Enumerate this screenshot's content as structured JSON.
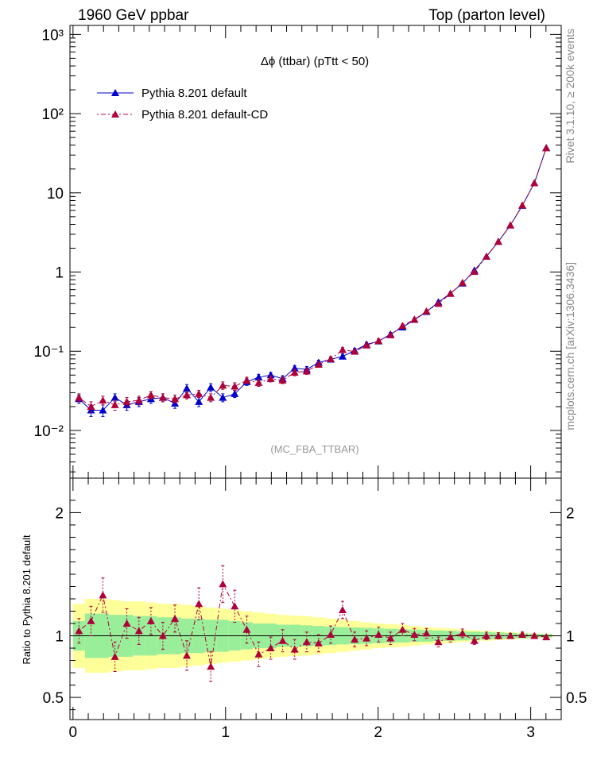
{
  "header": {
    "left": "1960 GeV ppbar",
    "right": "Top (parton level)"
  },
  "side_labels": {
    "rivet": "Rivet 3.1.10, ≥ 200k events",
    "mcplots": "mcplots.cern.ch [arXiv:1306.3436]"
  },
  "chart_data": [
    {
      "type": "line",
      "scale": "log",
      "title": "Δϕ (ttbar) (pTtt < 50)",
      "watermark": "(MC_FBA_TTBAR)",
      "xlim": [
        -0.02,
        3.2
      ],
      "ylim": [
        0.0025,
        1300
      ],
      "y_tick_labels": [
        "10⁻²",
        "10⁻¹",
        "1",
        "10",
        "10²",
        "10³"
      ],
      "x": [
        0.039,
        0.118,
        0.196,
        0.275,
        0.353,
        0.432,
        0.511,
        0.589,
        0.668,
        0.746,
        0.825,
        0.903,
        0.982,
        1.06,
        1.139,
        1.217,
        1.296,
        1.374,
        1.453,
        1.532,
        1.61,
        1.689,
        1.767,
        1.846,
        1.924,
        2.003,
        2.081,
        2.16,
        2.238,
        2.317,
        2.395,
        2.474,
        2.553,
        2.631,
        2.71,
        2.788,
        2.867,
        2.945,
        3.024,
        3.102
      ],
      "series": [
        {
          "name": "Pythia 8.201 default",
          "color": "#0000cc",
          "marker": "triangle",
          "values": [
            0.025,
            0.018,
            0.018,
            0.026,
            0.021,
            0.023,
            0.025,
            0.026,
            0.022,
            0.034,
            0.023,
            0.035,
            0.026,
            0.029,
            0.041,
            0.047,
            0.05,
            0.045,
            0.061,
            0.059,
            0.072,
            0.079,
            0.086,
            0.102,
            0.122,
            0.134,
            0.164,
            0.201,
            0.25,
            0.315,
            0.417,
            0.537,
            0.72,
            1.05,
            1.57,
            2.42,
            3.9,
            6.9,
            13.3,
            37.0
          ],
          "errors": [
            0.003,
            0.003,
            0.003,
            0.003,
            0.003,
            0.003,
            0.003,
            0.003,
            0.003,
            0.004,
            0.003,
            0.004,
            0.003,
            0.003,
            0.004,
            0.004,
            0.004,
            0.004,
            0.005,
            0.005,
            0.005,
            0.005,
            0.006,
            0.007,
            0.008,
            0.008,
            0.009,
            0.011,
            0.013,
            0.015,
            0.018,
            0.022,
            0.028,
            0.037,
            0.05,
            0.07,
            0.1,
            0.16,
            0.27,
            0.6
          ]
        },
        {
          "name": "Pythia 8.201 default-CD",
          "color": "#b0003a",
          "marker": "triangle",
          "values": [
            0.026,
            0.02,
            0.024,
            0.021,
            0.023,
            0.024,
            0.028,
            0.026,
            0.025,
            0.028,
            0.029,
            0.026,
            0.037,
            0.036,
            0.043,
            0.04,
            0.045,
            0.043,
            0.054,
            0.056,
            0.068,
            0.08,
            0.104,
            0.099,
            0.119,
            0.135,
            0.16,
            0.21,
            0.252,
            0.32,
            0.398,
            0.534,
            0.734,
            1.01,
            1.57,
            2.42,
            3.9,
            6.95,
            13.3,
            36.8
          ],
          "errors": [
            0.003,
            0.003,
            0.003,
            0.003,
            0.003,
            0.003,
            0.003,
            0.003,
            0.003,
            0.003,
            0.003,
            0.003,
            0.004,
            0.004,
            0.004,
            0.004,
            0.004,
            0.004,
            0.005,
            0.005,
            0.005,
            0.005,
            0.007,
            0.007,
            0.008,
            0.008,
            0.009,
            0.011,
            0.013,
            0.015,
            0.018,
            0.022,
            0.028,
            0.037,
            0.05,
            0.07,
            0.1,
            0.16,
            0.27,
            0.6
          ]
        }
      ],
      "legend_placement": "top-left"
    },
    {
      "type": "line",
      "scale": "linear",
      "ylabel": "Ratio to Pythia 8.201 default",
      "xlim": [
        -0.02,
        3.2
      ],
      "ylim": [
        0.32,
        2.28
      ],
      "y_ticks": [
        0.5,
        1,
        2
      ],
      "y_tick_labels": [
        "0.5",
        "1",
        "2"
      ],
      "x_ticks": [
        0,
        1,
        2,
        3
      ],
      "x_tick_labels": [
        "0",
        "1",
        "2",
        "3"
      ],
      "band_green_halfwidth": [
        0.12,
        0.18,
        0.18,
        0.17,
        0.17,
        0.16,
        0.16,
        0.15,
        0.15,
        0.14,
        0.14,
        0.13,
        0.13,
        0.12,
        0.11,
        0.1,
        0.1,
        0.09,
        0.09,
        0.085,
        0.08,
        0.075,
        0.07,
        0.068,
        0.065,
        0.06,
        0.057,
        0.054,
        0.05,
        0.047,
        0.043,
        0.04,
        0.037,
        0.033,
        0.03,
        0.027,
        0.023,
        0.02,
        0.017,
        0.014
      ],
      "band_yellow_halfwidth": [
        0.26,
        0.3,
        0.3,
        0.29,
        0.28,
        0.28,
        0.27,
        0.26,
        0.26,
        0.25,
        0.24,
        0.23,
        0.22,
        0.21,
        0.2,
        0.19,
        0.18,
        0.17,
        0.165,
        0.16,
        0.15,
        0.14,
        0.13,
        0.12,
        0.11,
        0.1,
        0.095,
        0.09,
        0.08,
        0.07,
        0.065,
        0.06,
        0.05,
        0.045,
        0.04,
        0.035,
        0.03,
        0.025,
        0.02,
        0.017
      ],
      "ratio": [
        1.04,
        1.12,
        1.33,
        0.83,
        1.1,
        1.04,
        1.12,
        1.0,
        1.14,
        0.84,
        1.26,
        0.75,
        1.42,
        1.24,
        1.05,
        0.85,
        0.9,
        0.96,
        0.89,
        0.95,
        0.94,
        1.01,
        1.21,
        0.97,
        0.98,
        1.01,
        0.98,
        1.05,
        1.01,
        1.02,
        0.95,
        0.99,
        1.02,
        0.96,
        1.0,
        1.0,
        1.0,
        1.01,
        1.0,
        0.99
      ],
      "ratio_errors": [
        0.1,
        0.12,
        0.14,
        0.12,
        0.12,
        0.11,
        0.11,
        0.11,
        0.11,
        0.12,
        0.13,
        0.12,
        0.15,
        0.13,
        0.11,
        0.1,
        0.09,
        0.09,
        0.08,
        0.08,
        0.07,
        0.07,
        0.07,
        0.06,
        0.06,
        0.06,
        0.05,
        0.05,
        0.05,
        0.04,
        0.04,
        0.04,
        0.035,
        0.03,
        0.03,
        0.025,
        0.02,
        0.02,
        0.015,
        0.012
      ]
    }
  ]
}
